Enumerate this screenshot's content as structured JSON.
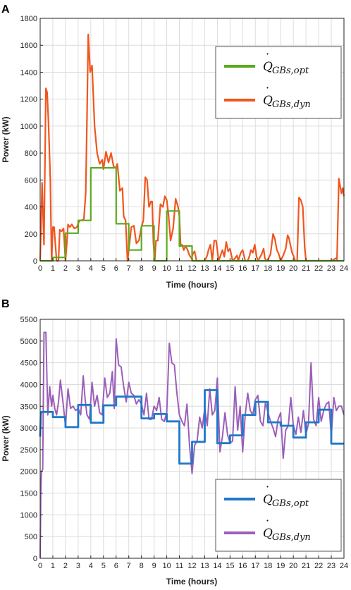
{
  "chart_data": [
    {
      "type": "line",
      "panel_label": "A",
      "xlabel": "Time (hours)",
      "ylabel": "Power (kW)",
      "xlim": [
        0,
        24
      ],
      "ylim": [
        0,
        1800
      ],
      "xticks": [
        0,
        1,
        2,
        3,
        4,
        5,
        6,
        7,
        8,
        9,
        10,
        11,
        12,
        13,
        14,
        15,
        16,
        17,
        18,
        19,
        20,
        21,
        22,
        23,
        24
      ],
      "yticks": [
        0,
        200,
        400,
        600,
        800,
        1000,
        1200,
        1400,
        1600,
        1800
      ],
      "grid": true,
      "legend_position": "top-right",
      "series": [
        {
          "name": "Q̇_{GBs,opt}",
          "color": "#5aab1e",
          "x": [
            0,
            1,
            1,
            2,
            2,
            3,
            3,
            4,
            4,
            6,
            6,
            7,
            7,
            8,
            8,
            9,
            9,
            10,
            10,
            11,
            11,
            12,
            12,
            24
          ],
          "y": [
            0,
            0,
            25,
            25,
            205,
            205,
            300,
            300,
            690,
            690,
            275,
            275,
            80,
            80,
            260,
            260,
            0,
            0,
            370,
            370,
            110,
            110,
            0,
            0
          ]
        },
        {
          "name": "Q̇_{GBs,dyn}",
          "color": "#f0561e",
          "x": [
            0,
            0.15,
            0.3,
            0.45,
            0.55,
            0.65,
            0.8,
            0.9,
            1.0,
            1.1,
            1.3,
            1.45,
            1.55,
            1.7,
            1.85,
            2.0,
            2.1,
            2.2,
            2.35,
            2.5,
            2.7,
            2.9,
            3.1,
            3.25,
            3.45,
            3.6,
            3.7,
            3.8,
            3.95,
            4.1,
            4.3,
            4.5,
            4.7,
            4.9,
            5.0,
            5.2,
            5.4,
            5.6,
            5.8,
            6.0,
            6.1,
            6.3,
            6.5,
            6.6,
            6.75,
            6.9,
            7.0,
            7.2,
            7.4,
            7.6,
            7.8,
            8.0,
            8.15,
            8.3,
            8.45,
            8.6,
            8.75,
            8.85,
            8.95,
            9.05,
            9.15,
            9.3,
            9.5,
            9.7,
            9.85,
            10.0,
            10.15,
            10.3,
            10.5,
            10.7,
            10.9,
            11.0,
            11.1,
            11.2,
            11.35,
            11.5,
            11.65,
            11.8,
            11.95,
            12.1,
            12.2,
            12.35,
            12.5,
            13.0,
            13.2,
            13.3,
            13.45,
            13.6,
            13.75,
            13.9,
            14.0,
            14.1,
            14.25,
            14.4,
            14.55,
            14.7,
            14.85,
            15.0,
            15.2,
            15.4,
            15.55,
            15.65,
            15.85,
            16.0,
            16.2,
            16.4,
            16.55,
            16.65,
            16.8,
            16.95,
            17.1,
            17.2,
            17.5,
            17.65,
            17.75,
            17.85,
            18.0,
            18.2,
            18.4,
            18.55,
            18.7,
            18.85,
            19.0,
            19.2,
            19.4,
            19.55,
            19.65,
            19.9,
            20.0,
            20.15,
            20.3,
            20.45,
            20.6,
            20.75,
            20.9,
            21.0,
            21.5,
            22.0,
            22.5,
            23.0,
            23.4,
            23.45,
            23.6,
            23.8,
            23.9,
            24.0
          ],
          "y": [
            0,
            580,
            120,
            1280,
            1250,
            1040,
            600,
            0,
            250,
            250,
            0,
            0,
            230,
            220,
            240,
            0,
            120,
            270,
            250,
            270,
            240,
            250,
            300,
            300,
            310,
            500,
            1050,
            1680,
            1400,
            1450,
            1000,
            800,
            720,
            750,
            680,
            810,
            730,
            800,
            700,
            690,
            720,
            520,
            540,
            330,
            300,
            0,
            80,
            250,
            260,
            130,
            150,
            250,
            300,
            620,
            600,
            400,
            440,
            440,
            130,
            0,
            150,
            150,
            420,
            400,
            480,
            450,
            330,
            150,
            240,
            460,
            400,
            330,
            110,
            120,
            80,
            110,
            80,
            40,
            20,
            60,
            70,
            0,
            0,
            0,
            40,
            80,
            120,
            0,
            150,
            150,
            80,
            0,
            40,
            80,
            30,
            140,
            70,
            90,
            0,
            20,
            40,
            0,
            60,
            80,
            0,
            0,
            40,
            80,
            60,
            120,
            30,
            0,
            50,
            90,
            20,
            0,
            10,
            50,
            200,
            160,
            80,
            50,
            0,
            40,
            90,
            190,
            170,
            60,
            40,
            0,
            0,
            470,
            450,
            400,
            100,
            0,
            0,
            0,
            0,
            0,
            20,
            10,
            610,
            500,
            540,
            480
          ]
        }
      ]
    },
    {
      "type": "line",
      "panel_label": "B",
      "xlabel": "Time (hours)",
      "ylabel": "Power (kW)",
      "xlim": [
        0,
        24
      ],
      "ylim": [
        0,
        5500
      ],
      "xticks": [
        0,
        1,
        2,
        3,
        4,
        5,
        6,
        7,
        8,
        9,
        10,
        11,
        12,
        13,
        14,
        15,
        16,
        17,
        18,
        19,
        20,
        21,
        22,
        23,
        24
      ],
      "yticks": [
        0,
        500,
        1000,
        1500,
        2000,
        2500,
        3000,
        3500,
        4000,
        4500,
        5000,
        5500
      ],
      "grid": true,
      "legend_position": "bottom-right",
      "series": [
        {
          "name": "Q̇_{GBs,opt}",
          "color": "#1f78c8",
          "x": [
            0,
            0.05,
            0.1,
            1,
            1,
            2,
            2,
            3,
            3,
            4,
            4,
            5,
            5,
            6,
            6,
            8,
            8,
            9,
            9,
            10,
            10,
            11,
            11,
            12,
            12,
            13,
            13,
            14,
            14,
            15,
            15,
            16,
            16,
            17,
            17,
            18,
            18,
            19,
            19,
            20,
            20,
            21,
            21,
            22,
            22,
            23,
            23,
            24
          ],
          "y": [
            2800,
            3300,
            3370,
            3370,
            3250,
            3250,
            3020,
            3020,
            3530,
            3530,
            3120,
            3120,
            3520,
            3520,
            3720,
            3720,
            3220,
            3220,
            3320,
            3320,
            3150,
            3150,
            2180,
            2180,
            2680,
            2680,
            3870,
            3870,
            2650,
            2650,
            2830,
            2830,
            3300,
            3300,
            3600,
            3600,
            3130,
            3130,
            3050,
            3050,
            2780,
            2780,
            3130,
            3130,
            3420,
            3420,
            2640,
            2640
          ]
        },
        {
          "name": "Q̇_{GBs,dyn}",
          "color": "#9b5fb8",
          "x": [
            0,
            0.05,
            0.1,
            0.2,
            0.3,
            0.45,
            0.6,
            0.75,
            0.9,
            1.0,
            1.15,
            1.3,
            1.45,
            1.6,
            1.8,
            2.0,
            2.2,
            2.4,
            2.6,
            2.8,
            3.0,
            3.2,
            3.4,
            3.55,
            3.7,
            3.9,
            4.1,
            4.3,
            4.5,
            4.7,
            4.9,
            5.1,
            5.3,
            5.5,
            5.7,
            5.85,
            6.0,
            6.2,
            6.4,
            6.6,
            6.8,
            7.0,
            7.2,
            7.4,
            7.6,
            7.8,
            8.0,
            8.2,
            8.4,
            8.6,
            8.8,
            9.0,
            9.2,
            9.4,
            9.6,
            9.8,
            10.0,
            10.2,
            10.4,
            10.6,
            10.8,
            11.0,
            11.2,
            11.4,
            11.6,
            11.8,
            12.0,
            12.2,
            12.4,
            12.6,
            12.8,
            13.0,
            13.2,
            13.4,
            13.6,
            13.8,
            14.0,
            14.2,
            14.4,
            14.6,
            14.8,
            15.0,
            15.2,
            15.4,
            15.6,
            15.8,
            16.0,
            16.2,
            16.4,
            16.6,
            16.8,
            17.0,
            17.2,
            17.4,
            17.6,
            17.8,
            18.0,
            18.2,
            18.4,
            18.6,
            18.8,
            19.0,
            19.2,
            19.4,
            19.6,
            19.8,
            20.0,
            20.2,
            20.4,
            20.6,
            20.8,
            21.0,
            21.2,
            21.4,
            21.6,
            21.8,
            22.0,
            22.2,
            22.4,
            22.6,
            22.8,
            23.0,
            23.2,
            23.4,
            23.6,
            23.8,
            24.0
          ],
          "y": [
            0,
            1500,
            2000,
            2050,
            5200,
            5200,
            3300,
            3950,
            3500,
            3750,
            3450,
            3300,
            3600,
            4100,
            3600,
            3050,
            3900,
            3450,
            3500,
            3400,
            3450,
            3300,
            4200,
            3650,
            3300,
            3200,
            4050,
            3500,
            3750,
            3350,
            3300,
            4150,
            3700,
            3800,
            4300,
            3450,
            5050,
            4450,
            4400,
            3950,
            3600,
            4050,
            3800,
            3750,
            3550,
            3650,
            3550,
            3300,
            3800,
            3200,
            3200,
            3500,
            3400,
            3700,
            3200,
            3150,
            3350,
            4950,
            4500,
            4450,
            3800,
            3300,
            3150,
            3050,
            3550,
            2600,
            1950,
            2600,
            2700,
            3250,
            3000,
            3450,
            3050,
            3900,
            3300,
            3400,
            4150,
            2450,
            2800,
            3350,
            2850,
            2650,
            2700,
            3950,
            2950,
            3500,
            2450,
            3300,
            3800,
            3400,
            3300,
            3650,
            3750,
            3150,
            3050,
            3600,
            3350,
            3150,
            3000,
            2800,
            3200,
            3350,
            2300,
            2950,
            3050,
            3700,
            3050,
            2850,
            3250,
            2900,
            3400,
            2850,
            3100,
            4500,
            3200,
            3050,
            3700,
            3150,
            3400,
            3550,
            3600,
            2800,
            3700,
            3400,
            3500,
            3500,
            3300
          ]
        }
      ]
    }
  ]
}
